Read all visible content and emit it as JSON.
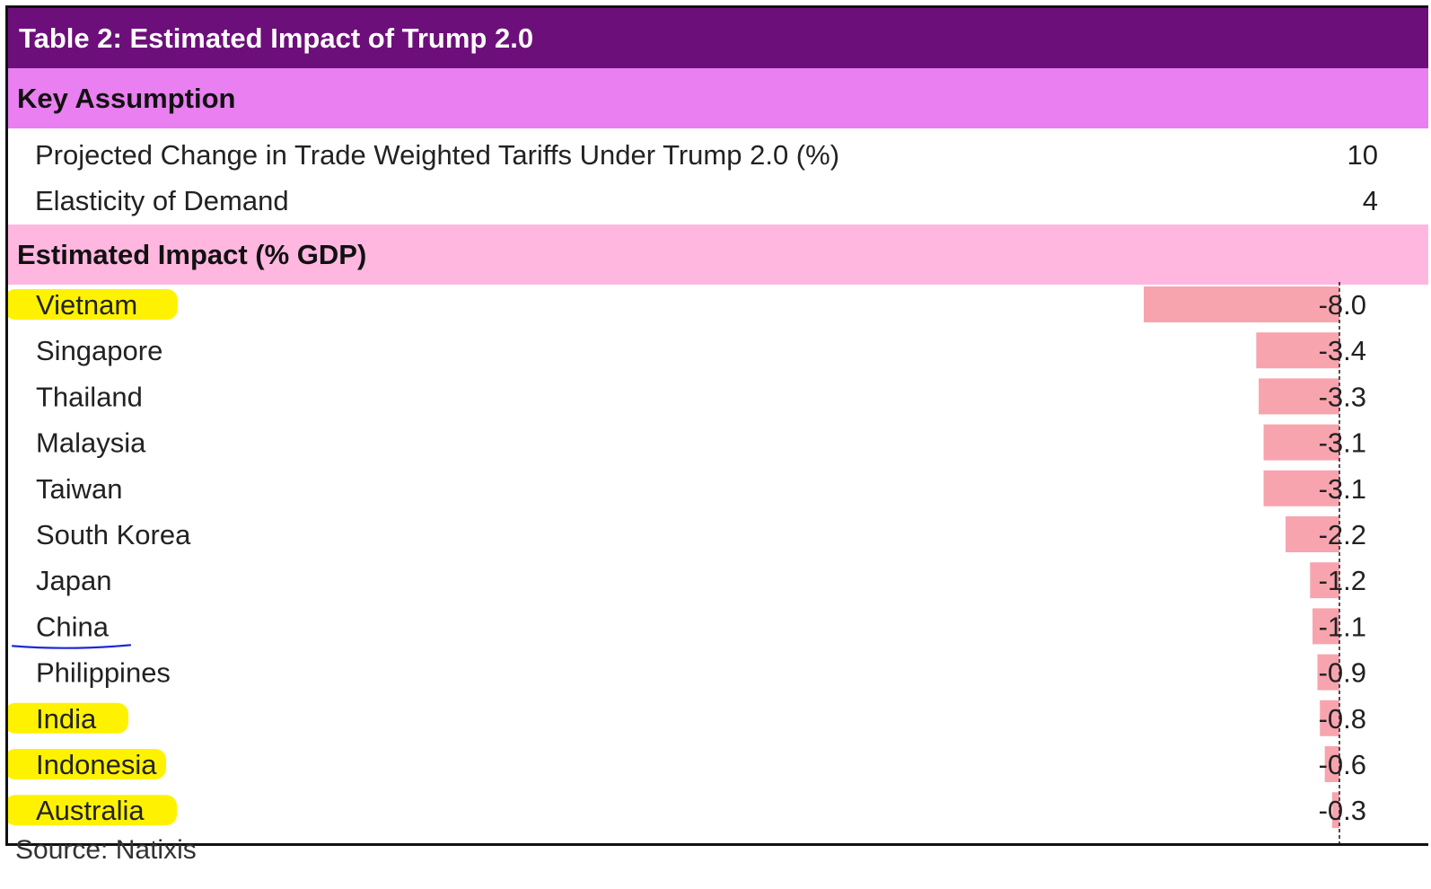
{
  "title": "Table 2: Estimated Impact of Trump 2.0",
  "colors": {
    "title_bg": "#6d0f7a",
    "key_assumption_bg": "#e97ff0",
    "estimated_impact_bg": "#ffb7e0",
    "bar_fill": "#f8a4ae",
    "highlight": "#fff200",
    "underline": "#1d2ad4"
  },
  "key_assumption": {
    "header": "Key Assumption",
    "rows": [
      {
        "label": "Projected Change in Trade Weighted Tariffs Under Trump 2.0 (%)",
        "value": "10"
      },
      {
        "label": "Elasticity of Demand",
        "value": "4"
      }
    ]
  },
  "estimated_impact_header": "Estimated Impact (% GDP)",
  "chart_data": {
    "type": "bar",
    "orientation": "horizontal",
    "categories": [
      "Vietnam",
      "Singapore",
      "Thailand",
      "Malaysia",
      "Taiwan",
      "South Korea",
      "Japan",
      "China",
      "Philippines",
      "India",
      "Indonesia",
      "Australia"
    ],
    "values": [
      -8.0,
      -3.4,
      -3.3,
      -3.1,
      -3.1,
      -2.2,
      -1.2,
      -1.1,
      -0.9,
      -0.8,
      -0.6,
      -0.3
    ],
    "value_labels": [
      "-8.0",
      "-3.4",
      "-3.3",
      "-3.1",
      "-3.1",
      "-2.2",
      "-1.2",
      "-1.1",
      "-0.9",
      "-0.8",
      "-0.6",
      "-0.3"
    ],
    "xlim": [
      -8.0,
      0
    ],
    "highlighted": [
      "Vietnam",
      "India",
      "Indonesia",
      "Australia"
    ],
    "underlined": [
      "China"
    ]
  },
  "source": "Source: Natixis"
}
